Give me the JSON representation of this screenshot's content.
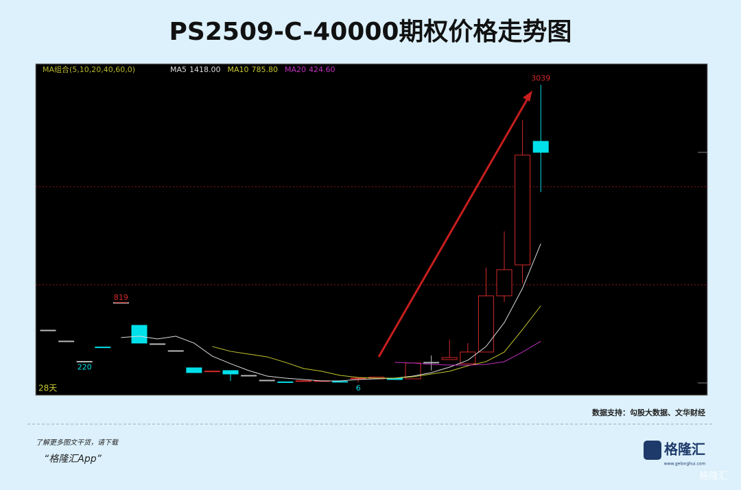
{
  "header": {
    "title": "PS2509-C-40000期权价格走势图"
  },
  "chart_data": {
    "type": "candlestick",
    "legend_title": "MA组合(5,10,20,40,60,0)",
    "period_label": "28天",
    "open": [
      538,
      427,
      220,
      366,
      819,
      587,
      399,
      329,
      154,
      117,
      126,
      77,
      28,
      11,
      20,
      20,
      15,
      42,
      42,
      49,
      42,
      210,
      238,
      196,
      315,
      888,
      1203,
      2462
    ],
    "high": [
      538,
      427,
      220,
      366,
      819,
      587,
      399,
      329,
      154,
      121,
      126,
      77,
      28,
      11,
      22,
      22,
      15,
      55,
      60,
      49,
      203,
      280,
      440,
      406,
      1175,
      1545,
      2678,
      3039
    ],
    "low": [
      538,
      427,
      220,
      362,
      819,
      406,
      399,
      329,
      105,
      117,
      21,
      77,
      28,
      9,
      20,
      20,
      13,
      6,
      42,
      35,
      42,
      126,
      238,
      196,
      315,
      825,
      1014,
      1944
    ],
    "close": [
      538,
      427,
      220,
      362,
      819,
      406,
      399,
      329,
      105,
      121,
      91,
      77,
      28,
      9,
      22,
      22,
      13,
      49,
      60,
      35,
      203,
      210,
      259,
      315,
      888,
      1154,
      2322,
      2350
    ],
    "up_color": "#d42a2a",
    "down_color": "#00e0ea",
    "flat_color": "#bbbbbb",
    "ylim": [
      -126,
      3252
    ],
    "yticks": [
      1000,
      2000
    ],
    "grid": true,
    "series": [
      {
        "name": "MA5",
        "color": "#dddddd",
        "values": [
          null,
          null,
          null,
          null,
          462,
          476,
          448,
          476,
          406,
          273,
          196,
          126,
          70,
          49,
          35,
          21,
          21,
          35,
          42,
          49,
          70,
          105,
          161,
          231,
          371,
          615,
          965,
          1418
        ],
        "value_labels": [
          null,
          null,
          null,
          null,
          null,
          null,
          null,
          null,
          null,
          null,
          null,
          null,
          null,
          null,
          null,
          null,
          null,
          null,
          null,
          null,
          null,
          null,
          null,
          null,
          null,
          null,
          null,
          "1418.00"
        ]
      },
      {
        "name": "MA10",
        "color": "#c8c832",
        "values": [
          null,
          null,
          null,
          null,
          null,
          null,
          null,
          null,
          null,
          371,
          322,
          294,
          266,
          210,
          147,
          119,
          77,
          56,
          49,
          49,
          63,
          91,
          119,
          175,
          217,
          315,
          545,
          785.8
        ],
        "value_labels": [
          null,
          null,
          null,
          null,
          null,
          null,
          null,
          null,
          null,
          null,
          null,
          null,
          null,
          null,
          null,
          null,
          null,
          null,
          null,
          null,
          null,
          null,
          null,
          null,
          null,
          null,
          null,
          "785.80"
        ]
      },
      {
        "name": "MA20",
        "color": "#c030c0",
        "values": [
          null,
          null,
          null,
          null,
          null,
          null,
          null,
          null,
          null,
          null,
          null,
          null,
          null,
          null,
          null,
          null,
          null,
          null,
          null,
          210,
          203,
          189,
          182,
          182,
          189,
          217,
          315,
          424.6
        ],
        "value_labels": [
          null,
          null,
          null,
          null,
          null,
          null,
          null,
          null,
          null,
          null,
          null,
          null,
          null,
          null,
          null,
          null,
          null,
          null,
          null,
          null,
          null,
          null,
          null,
          null,
          null,
          null,
          null,
          "424.60"
        ]
      }
    ]
  },
  "footer": {
    "source": "数据支持：勾股大数据、文华财经",
    "promo": "了解更多图文干货，请下载",
    "app": "“格隆汇App”",
    "logo": "格隆汇",
    "site": "www.gelonghui.com",
    "watermark": "格隆汇"
  }
}
